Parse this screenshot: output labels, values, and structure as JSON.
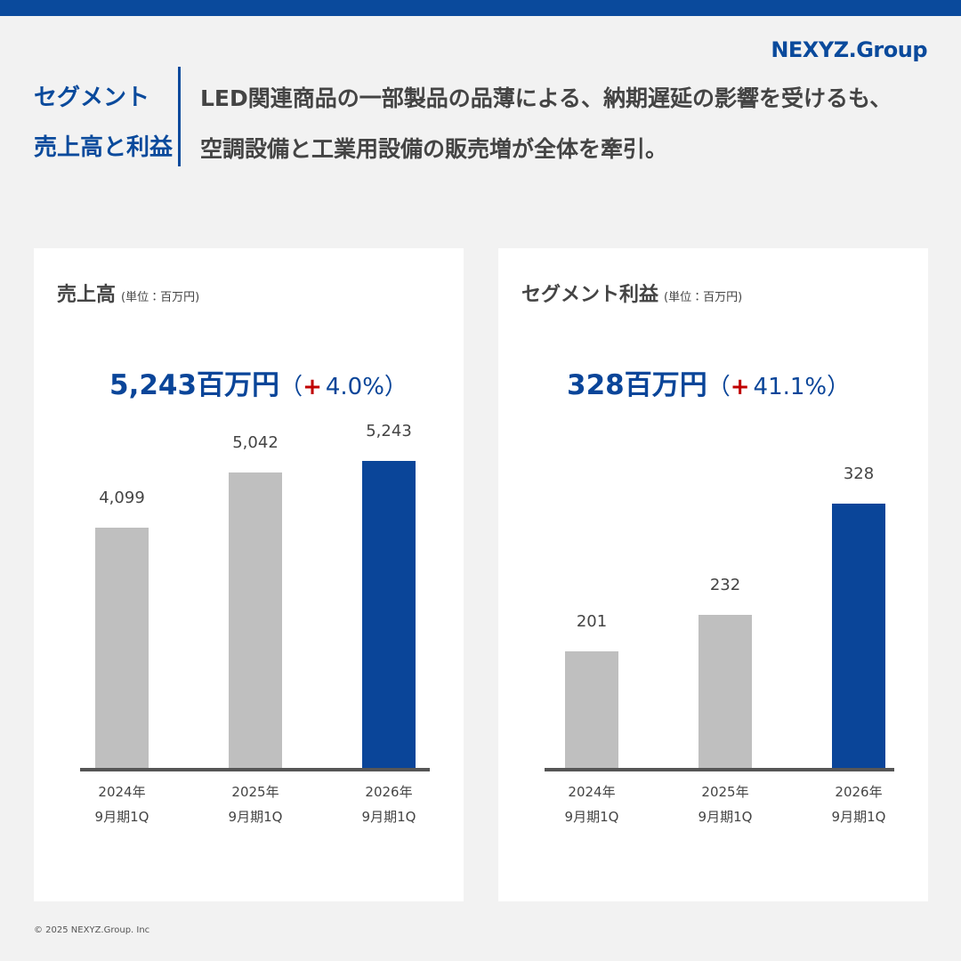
{
  "header": {
    "logo": "NEXYZ.Group",
    "title": [
      "セグメント",
      "売上高と利益"
    ],
    "lead": [
      "LED関連商品の一部製品の品薄による、納期遅延の影響を受けるも、",
      "空調設備と工業用設備の販売増が全体を牽引。"
    ]
  },
  "chart_data": [
    {
      "type": "bar",
      "title": "売上高",
      "unit": "(単位：百万円)",
      "headline": "5,243百万円",
      "change": {
        "open": "（",
        "sign": "+",
        "value": "4.0%）"
      },
      "categories": [
        "2024年\n9月期1Q",
        "2025年\n9月期1Q",
        "2026年\n9月期1Q"
      ],
      "values": [
        4099,
        5042,
        5243
      ],
      "value_labels": [
        "4,099",
        "5,042",
        "5,243"
      ],
      "colors": [
        "#bfbfbf",
        "#bfbfbf",
        "#0a4599"
      ],
      "ylim": [
        0,
        5450
      ]
    },
    {
      "type": "bar",
      "title": "セグメント利益",
      "unit": "(単位：百万円)",
      "headline": "328百万円",
      "change": {
        "open": "（",
        "sign": "+",
        "value": "41.1%）"
      },
      "categories": [
        "2024年\n9月期1Q",
        "2025年\n9月期1Q",
        "2026年\n9月期1Q"
      ],
      "values": [
        201,
        232,
        328
      ],
      "value_labels": [
        "201",
        "232",
        "328"
      ],
      "colors": [
        "#bfbfbf",
        "#bfbfbf",
        "#0a4599"
      ],
      "ylim": [
        100,
        375
      ]
    }
  ],
  "footer": "© 2025 NEXYZ.Group. Inc"
}
